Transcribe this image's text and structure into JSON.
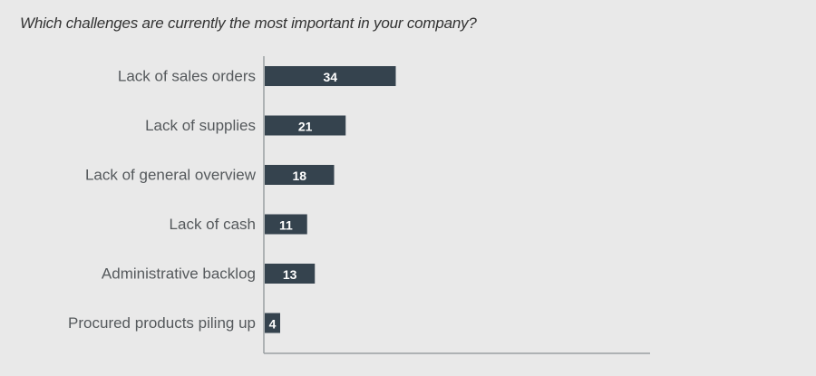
{
  "title": "Which challenges are currently the most important in your company?",
  "colors": {
    "bar": "#35434e",
    "axis": "#9a9fa3",
    "background": "#e9e9e9",
    "label": "#55595c"
  },
  "chart_data": {
    "type": "bar",
    "orientation": "horizontal",
    "categories": [
      "Lack of sales orders",
      "Lack of supplies",
      "Lack of general overview",
      "Lack of cash",
      "Administrative backlog",
      "Procured products piling up"
    ],
    "values": [
      34,
      21,
      18,
      11,
      13,
      4
    ],
    "title": "Which challenges are currently the most important in your company?",
    "xlabel": "",
    "ylabel": "",
    "xlim": [
      0,
      100
    ],
    "grid": false
  }
}
